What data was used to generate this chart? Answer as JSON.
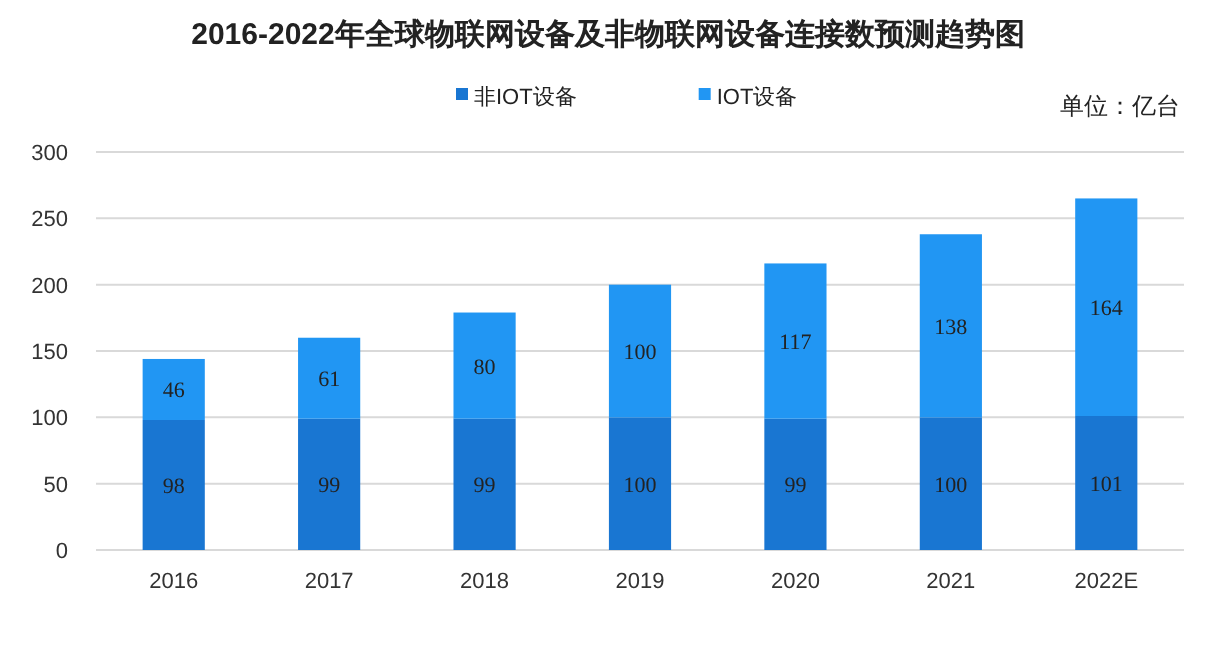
{
  "chart_data": {
    "type": "bar",
    "title": "2016-2022年全球物联网设备及非物联网设备连接数预测趋势图",
    "categories": [
      "2016",
      "2017",
      "2018",
      "2019",
      "2020",
      "2021",
      "2022E"
    ],
    "series": [
      {
        "name": "非IOT设备",
        "color": "#1976d2",
        "values": [
          98,
          99,
          99,
          100,
          99,
          100,
          101
        ]
      },
      {
        "name": "IOT设备",
        "color": "#2196f3",
        "values": [
          46,
          61,
          80,
          100,
          117,
          138,
          164
        ]
      }
    ],
    "stacked": true,
    "ylim": [
      0,
      300
    ],
    "yticks": [
      0,
      50,
      100,
      150,
      200,
      250,
      300
    ],
    "grid": "y",
    "legend": "top",
    "data_labels": true,
    "annotations": [
      "单位：亿台"
    ]
  }
}
